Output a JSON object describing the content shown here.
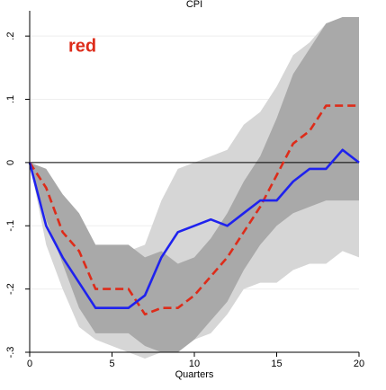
{
  "chart_data": {
    "type": "area",
    "title": "CPI",
    "xlabel": "Quarters",
    "ylabel": "",
    "xlim": [
      0,
      20
    ],
    "ylim": [
      -0.3,
      0.24
    ],
    "x_ticks": [
      0,
      5,
      10,
      15,
      20
    ],
    "x_tick_labels": [
      "0",
      "5",
      "10",
      "15",
      "20"
    ],
    "y_ticks": [
      0.2,
      0.1,
      0,
      -0.1,
      -0.2,
      -0.3
    ],
    "y_tick_labels": [
      ".2",
      ".1",
      "0",
      "-.1",
      "-.2",
      "-.3"
    ],
    "y_tick_rotation": "vertical",
    "grid": true,
    "zero_line": true,
    "annotation": {
      "text": "red",
      "color": "#dd2c1a",
      "x": 3.2,
      "y": 0.175
    },
    "x": [
      0,
      1,
      2,
      3,
      4,
      5,
      6,
      7,
      8,
      9,
      10,
      11,
      12,
      13,
      14,
      15,
      16,
      17,
      18,
      19,
      20
    ],
    "bands": [
      {
        "color": "#d6d6d6",
        "upper": [
          0,
          -0.01,
          -0.07,
          -0.09,
          -0.14,
          -0.14,
          -0.14,
          -0.13,
          -0.06,
          -0.01,
          0.0,
          0.01,
          0.02,
          0.06,
          0.08,
          0.12,
          0.17,
          0.19,
          0.22,
          0.23,
          0.23
        ],
        "lower": [
          0,
          -0.13,
          -0.2,
          -0.26,
          -0.28,
          -0.29,
          -0.3,
          -0.31,
          -0.3,
          -0.29,
          -0.28,
          -0.27,
          -0.24,
          -0.2,
          -0.19,
          -0.19,
          -0.17,
          -0.16,
          -0.16,
          -0.14,
          -0.15
        ]
      },
      {
        "color": "#a9a9a9",
        "upper": [
          0,
          -0.01,
          -0.05,
          -0.08,
          -0.13,
          -0.13,
          -0.13,
          -0.15,
          -0.14,
          -0.16,
          -0.15,
          -0.12,
          -0.08,
          -0.03,
          0.01,
          0.07,
          0.14,
          0.18,
          0.22,
          0.23,
          0.23
        ],
        "lower": [
          0,
          -0.09,
          -0.16,
          -0.23,
          -0.27,
          -0.27,
          -0.27,
          -0.29,
          -0.3,
          -0.3,
          -0.28,
          -0.25,
          -0.22,
          -0.17,
          -0.13,
          -0.1,
          -0.08,
          -0.07,
          -0.06,
          -0.06,
          -0.06
        ]
      }
    ],
    "series": [
      {
        "color": "#dd2c1a",
        "style": "dashed",
        "values": [
          0,
          -0.04,
          -0.11,
          -0.14,
          -0.2,
          -0.2,
          -0.2,
          -0.24,
          -0.23,
          -0.23,
          -0.21,
          -0.18,
          -0.15,
          -0.11,
          -0.07,
          -0.02,
          0.03,
          0.05,
          0.09,
          0.09,
          0.09
        ]
      },
      {
        "color": "#1f22ee",
        "style": "solid",
        "values": [
          0,
          -0.1,
          -0.15,
          -0.19,
          -0.23,
          -0.23,
          -0.23,
          -0.21,
          -0.15,
          -0.11,
          -0.1,
          -0.09,
          -0.1,
          -0.08,
          -0.06,
          -0.06,
          -0.03,
          -0.01,
          -0.01,
          0.02,
          0.0
        ]
      }
    ]
  }
}
